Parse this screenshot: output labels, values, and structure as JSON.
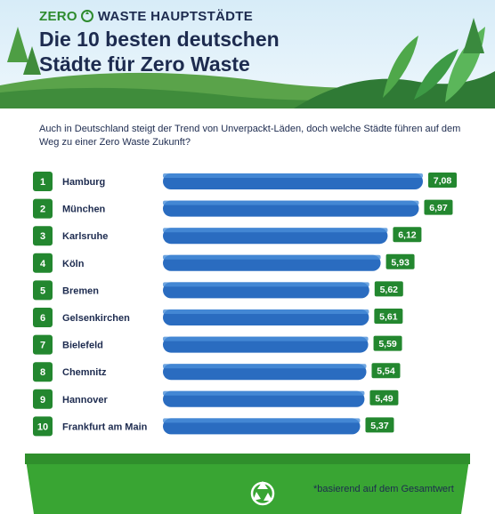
{
  "header": {
    "kicker_zero": "ZERO",
    "kicker_rest": "WASTE HAUPTSTÄDTE",
    "title": "Die 10 besten deutschen Städte für Zero Waste"
  },
  "intro": "Auch in Deutschland steigt der Trend von Unverpackt-Läden, doch welche Städte führen auf dem Weg zu einer Zero Waste Zukunft?",
  "footnote": "*basierend auf dem Gesamtwert",
  "icons": {
    "kicker": "recycle-icon",
    "bin": "recycle-icon"
  },
  "colors": {
    "brand_green": "#2e8b2e",
    "badge_green": "#23872f",
    "bar_blue": "#2a6cc0",
    "text_dark": "#1d2b4f",
    "bin_green": "#39a533"
  },
  "chart_data": {
    "type": "bar",
    "orientation": "horizontal",
    "categories": [
      "Hamburg",
      "München",
      "Karlsruhe",
      "Köln",
      "Bremen",
      "Gelsenkirchen",
      "Bielefeld",
      "Chemnitz",
      "Hannover",
      "Frankfurt am Main"
    ],
    "ranks": [
      "1",
      "2",
      "3",
      "4",
      "5",
      "6",
      "7",
      "8",
      "9",
      "10"
    ],
    "values": [
      7.08,
      6.97,
      6.12,
      5.93,
      5.62,
      5.61,
      5.59,
      5.54,
      5.49,
      5.37
    ],
    "value_labels": [
      "7,08",
      "6,97",
      "6,12",
      "5,93",
      "5,62",
      "5,61",
      "5,59",
      "5,54",
      "5,49",
      "5,37"
    ],
    "title": "",
    "xlabel": "",
    "ylabel": "",
    "xlim": [
      0,
      7.08
    ],
    "grid": false,
    "legend": "none"
  }
}
